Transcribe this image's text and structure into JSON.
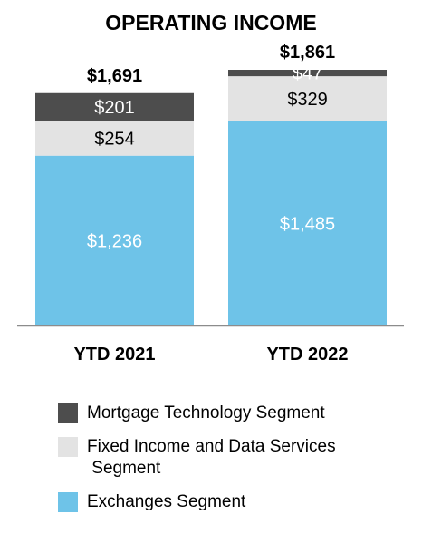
{
  "chart_data": {
    "type": "bar",
    "stacked": true,
    "title": "OPERATING INCOME",
    "categories": [
      "YTD 2021",
      "YTD 2022"
    ],
    "totals": [
      "$1,691",
      "$1,861"
    ],
    "series": [
      {
        "name": "Exchanges Segment",
        "values": [
          1236,
          1485
        ],
        "labels": [
          "$1,236",
          "$1,485"
        ],
        "color": "#6ec3e8",
        "label_color": "#ffffff"
      },
      {
        "name": "Fixed Income and Data Services Segment",
        "values": [
          254,
          329
        ],
        "labels": [
          "$254",
          "$329"
        ],
        "color": "#e3e3e3",
        "label_color": "#000000"
      },
      {
        "name": "Mortgage Technology Segment",
        "values": [
          201,
          47
        ],
        "labels": [
          "$201",
          "$47"
        ],
        "color": "#4d4d4d",
        "label_color": "#ffffff"
      }
    ],
    "legend_order": [
      "Mortgage Technology Segment",
      "Fixed Income and Data Services Segment",
      "Exchanges Segment"
    ],
    "ylim": [
      0,
      1861
    ],
    "grid": false,
    "legend_position": "bottom"
  }
}
